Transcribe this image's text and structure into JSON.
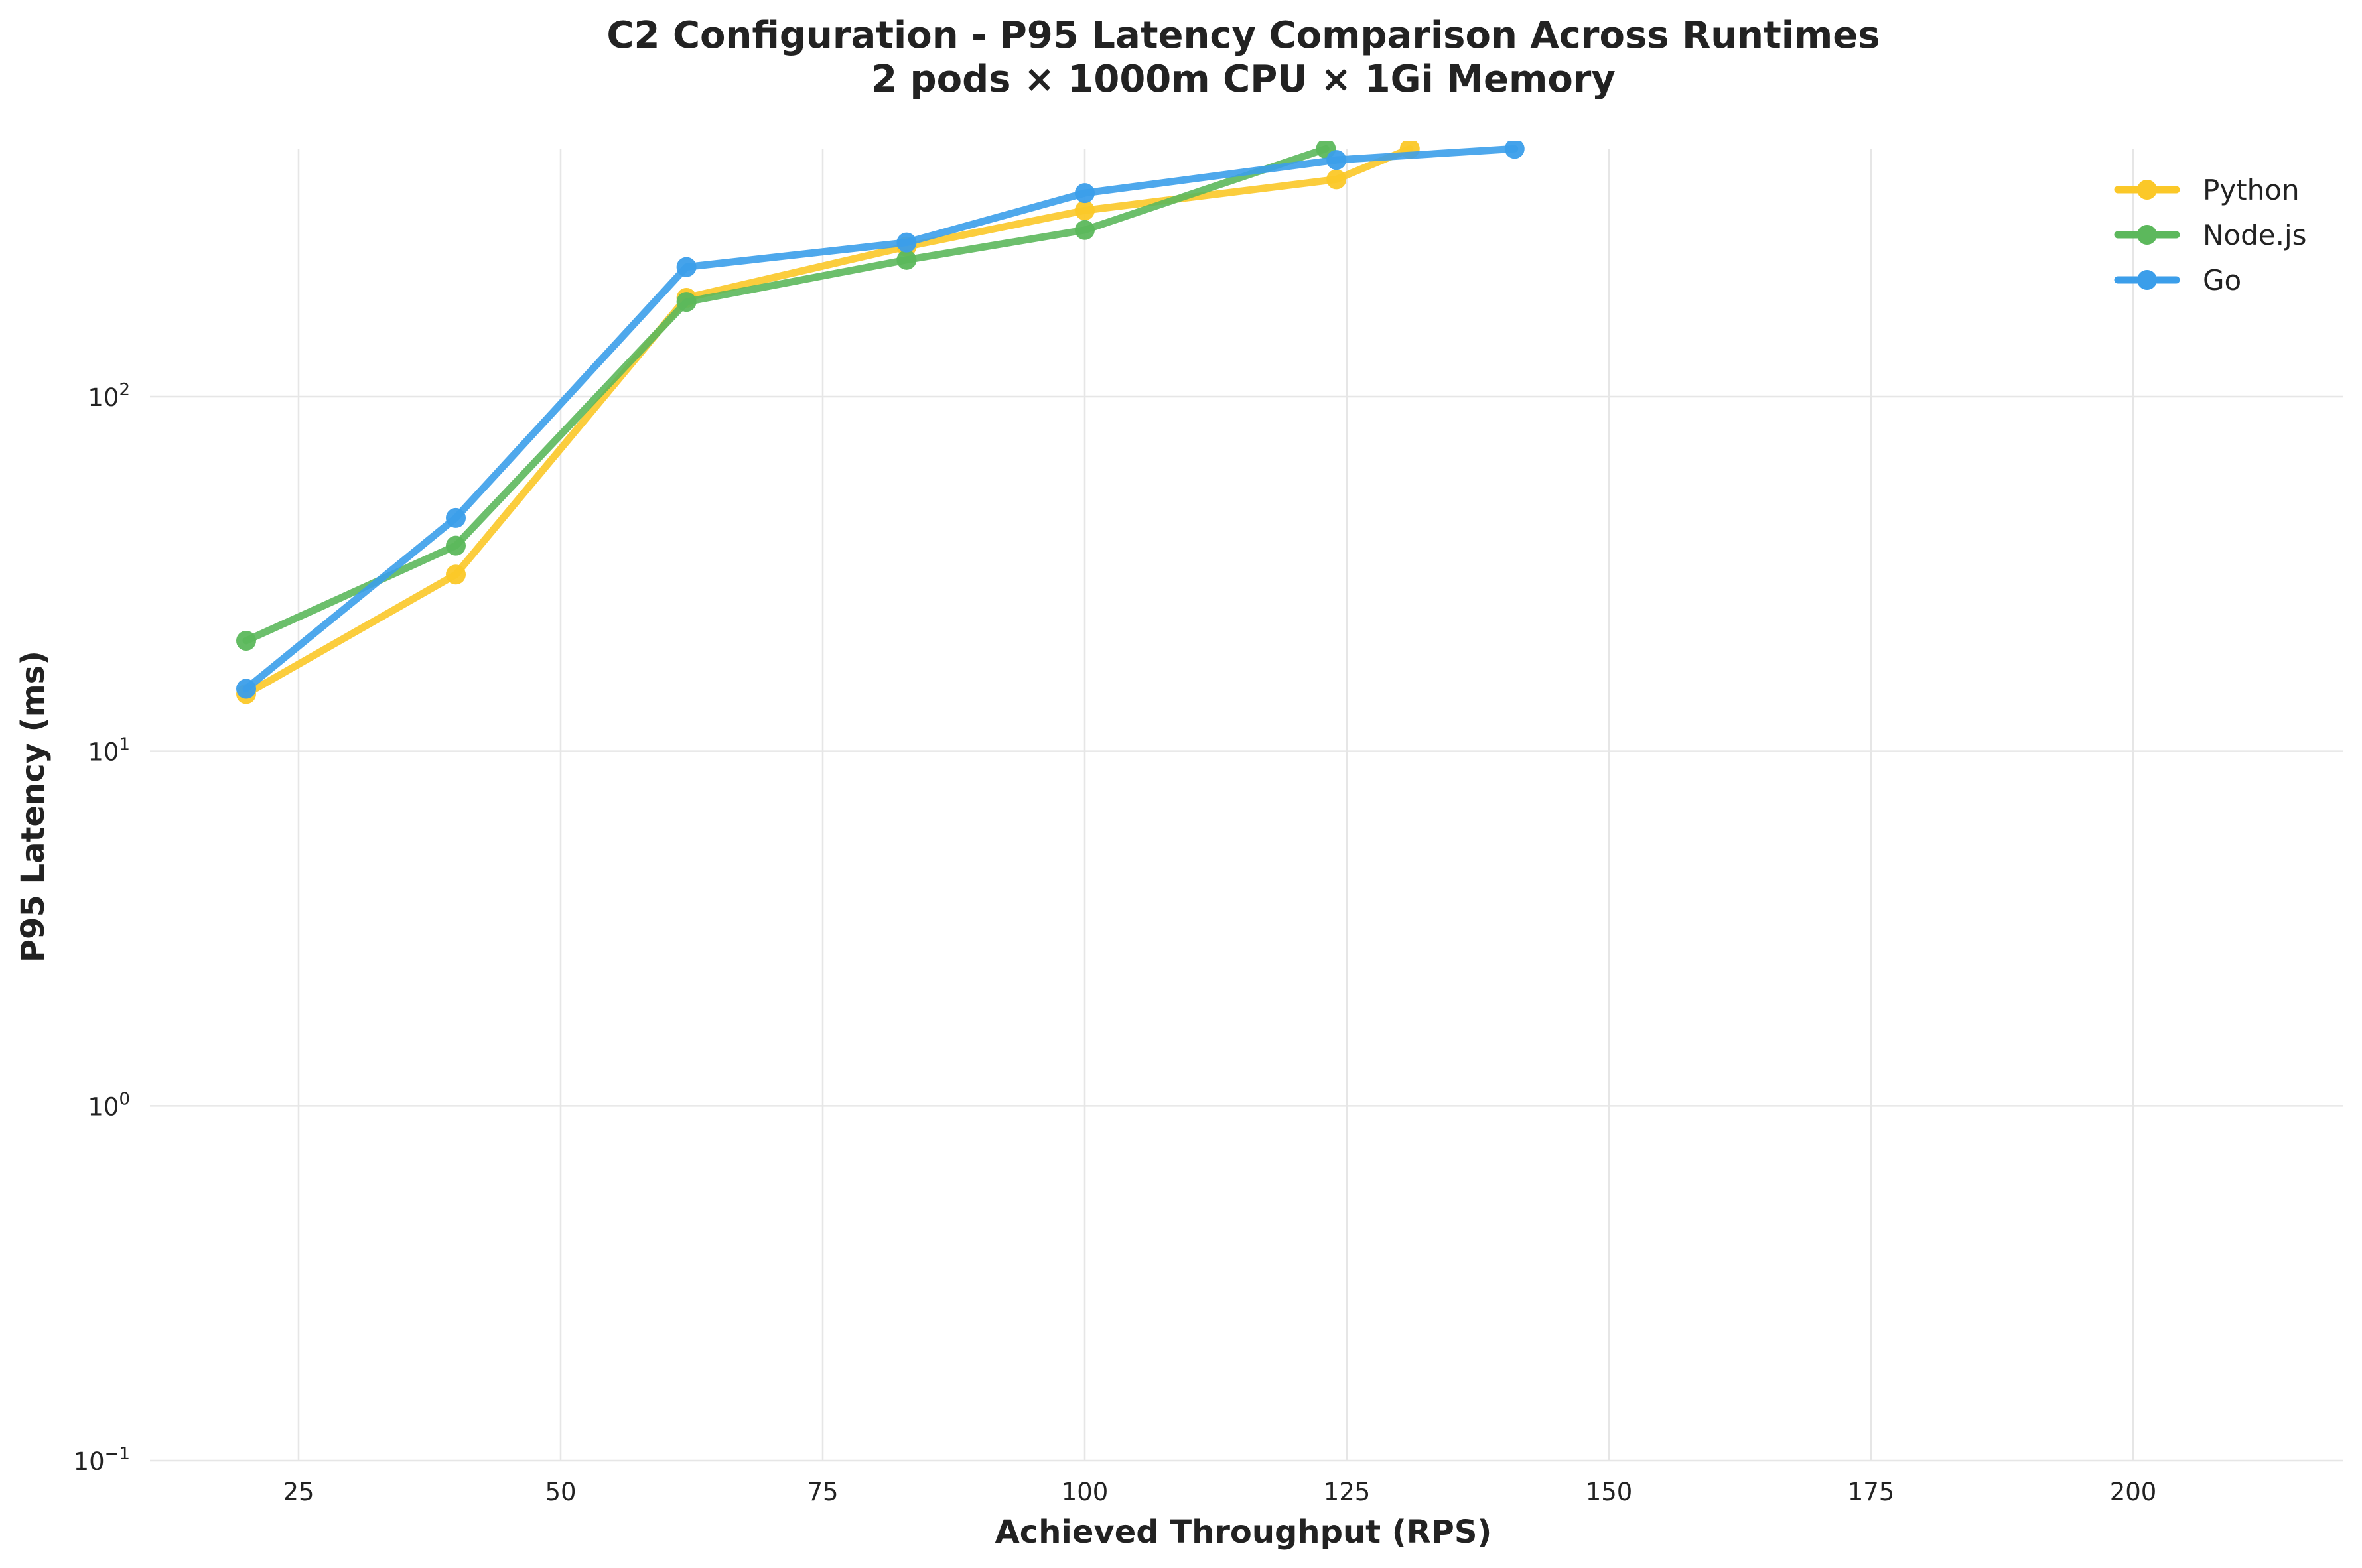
{
  "chart_data": {
    "type": "line",
    "title": "C2 Configuration - P95 Latency Comparison Across Runtimes",
    "subtitle": "2 pods × 1000m CPU × 1Gi Memory",
    "xlabel": "Achieved Throughput (RPS)",
    "ylabel": "P95 Latency (ms)",
    "xlim": [
      10,
      220
    ],
    "ylim": [
      0.1,
      500
    ],
    "y_scale": "log",
    "grid": true,
    "legend_position": "top-right",
    "x_ticks": [
      {
        "value": 25,
        "label": "25"
      },
      {
        "value": 50,
        "label": "50"
      },
      {
        "value": 75,
        "label": "75"
      },
      {
        "value": 100,
        "label": "100"
      },
      {
        "value": 125,
        "label": "125"
      },
      {
        "value": 150,
        "label": "150"
      },
      {
        "value": 175,
        "label": "175"
      },
      {
        "value": 200,
        "label": "200"
      }
    ],
    "y_ticks": [
      {
        "value": 0.1,
        "base": "10",
        "exp": "−1"
      },
      {
        "value": 1,
        "base": "10",
        "exp": "0"
      },
      {
        "value": 10,
        "base": "10",
        "exp": "1"
      },
      {
        "value": 100,
        "base": "10",
        "exp": "2"
      }
    ],
    "series": [
      {
        "name": "Python",
        "color": "#fbc828",
        "points": [
          [
            20,
            14.5
          ],
          [
            40,
            31.5
          ],
          [
            62,
            190
          ],
          [
            83,
            265
          ],
          [
            100,
            335
          ],
          [
            124,
            410
          ],
          [
            131,
            500
          ]
        ]
      },
      {
        "name": "Node.js",
        "color": "#5cb85c",
        "points": [
          [
            20,
            20.5
          ],
          [
            40,
            38
          ],
          [
            62,
            185
          ],
          [
            83,
            243
          ],
          [
            100,
            295
          ],
          [
            123,
            500
          ]
        ]
      },
      {
        "name": "Go",
        "color": "#3b9eea",
        "points": [
          [
            20,
            15
          ],
          [
            40,
            45.5
          ],
          [
            62,
            232
          ],
          [
            83,
            272
          ],
          [
            100,
            375
          ],
          [
            124,
            465
          ],
          [
            141,
            500
          ]
        ]
      }
    ]
  }
}
